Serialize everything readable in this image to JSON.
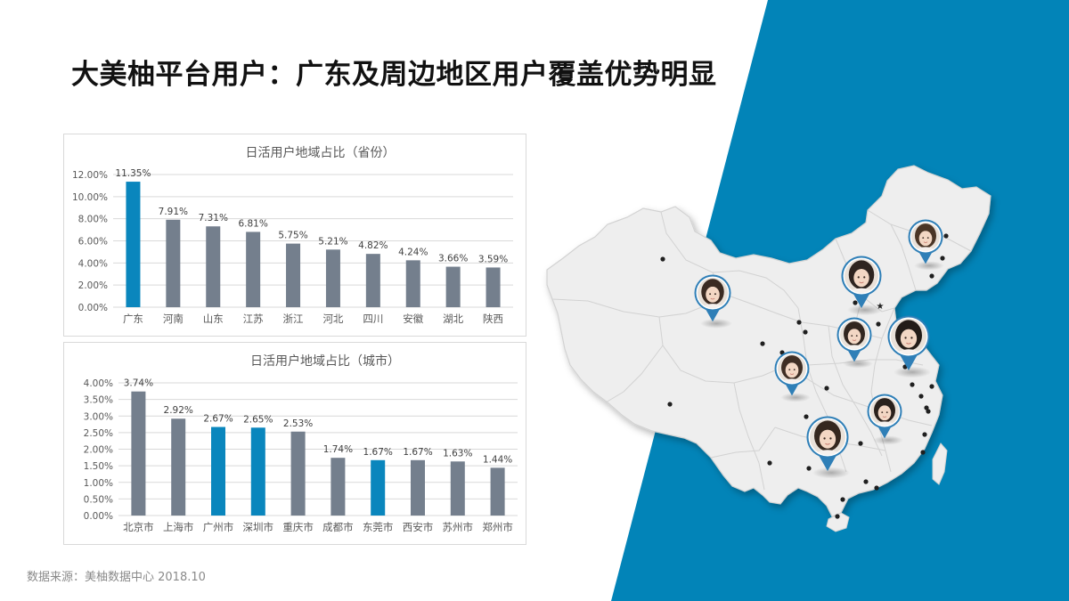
{
  "slide": {
    "title": "大美柚平台用户：广东及周边地区用户覆盖优势明显",
    "source": "数据来源：美柚数据中心 2018.10"
  },
  "colors": {
    "background_accent": "#0284b8",
    "highlight_bar": "#0a86bd",
    "normal_bar": "#747f8d",
    "map_fill": "#eeeeee",
    "map_stroke": "#d2d2d2"
  },
  "chart_data": [
    {
      "type": "bar",
      "title": "日活用户地域占比（省份）",
      "categories": [
        "广东",
        "河南",
        "山东",
        "江苏",
        "浙江",
        "河北",
        "四川",
        "安徽",
        "湖北",
        "陕西"
      ],
      "values": [
        11.35,
        7.91,
        7.31,
        6.81,
        5.75,
        5.21,
        4.82,
        4.24,
        3.66,
        3.59
      ],
      "value_labels": [
        "11.35%",
        "7.91%",
        "7.31%",
        "6.81%",
        "5.75%",
        "5.21%",
        "4.82%",
        "4.24%",
        "3.66%",
        "3.59%"
      ],
      "highlight": [
        true,
        false,
        false,
        false,
        false,
        false,
        false,
        false,
        false,
        false
      ],
      "ylim": [
        0,
        12
      ],
      "yticks": [
        0,
        2,
        4,
        6,
        8,
        10,
        12
      ],
      "ytick_labels": [
        "0.00%",
        "2.00%",
        "4.00%",
        "6.00%",
        "8.00%",
        "10.00%",
        "12.00%"
      ],
      "grid": true,
      "legend": "none"
    },
    {
      "type": "bar",
      "title": "日活用户地域占比（城市）",
      "categories": [
        "北京市",
        "上海市",
        "广州市",
        "深圳市",
        "重庆市",
        "成都市",
        "东莞市",
        "西安市",
        "苏州市",
        "郑州市"
      ],
      "values": [
        3.74,
        2.92,
        2.67,
        2.65,
        2.53,
        1.74,
        1.67,
        1.67,
        1.63,
        1.44
      ],
      "value_labels": [
        "3.74%",
        "2.92%",
        "2.67%",
        "2.65%",
        "2.53%",
        "1.74%",
        "1.67%",
        "1.67%",
        "1.63%",
        "1.44%"
      ],
      "highlight": [
        false,
        false,
        true,
        true,
        false,
        false,
        true,
        false,
        false,
        false
      ],
      "ylim": [
        0,
        4
      ],
      "yticks": [
        0,
        0.5,
        1,
        1.5,
        2,
        2.5,
        3,
        3.5,
        4
      ],
      "ytick_labels": [
        "0.00%",
        "0.50%",
        "1.00%",
        "1.50%",
        "2.00%",
        "2.50%",
        "3.00%",
        "3.50%",
        "4.00%"
      ],
      "grid": true,
      "legend": "none"
    }
  ],
  "map": {
    "icons": [
      "china-map-icon",
      "user-location-pin-icon",
      "city-dot-icon",
      "capital-star-icon"
    ]
  }
}
